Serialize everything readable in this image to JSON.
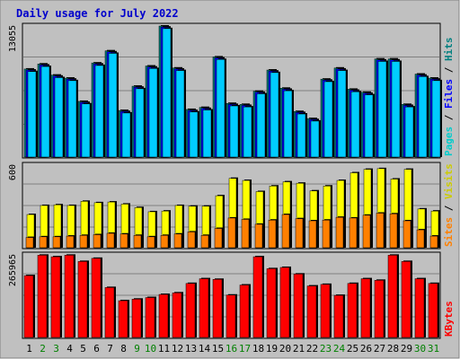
{
  "colors": {
    "background": "#c0c0c0",
    "border": "#808080",
    "panel_border": "#000000",
    "title_text": "#0000cc",
    "hits_label": "#008080",
    "files_label": "#0000ff",
    "pages_label": "#00cccc",
    "visits_label": "#cccc00",
    "sites_label": "#ff8000",
    "kbytes_label": "#ff0000",
    "weekday_text": "#000000",
    "weekend_text": "#008000"
  },
  "chart_data": {
    "type": "bar",
    "title": "Daily usage for July 2022",
    "days": [
      "1",
      "2",
      "3",
      "4",
      "5",
      "6",
      "7",
      "8",
      "9",
      "10",
      "11",
      "12",
      "13",
      "14",
      "15",
      "16",
      "17",
      "18",
      "19",
      "20",
      "21",
      "22",
      "23",
      "24",
      "25",
      "26",
      "27",
      "28",
      "29",
      "30",
      "31"
    ],
    "weekend_days": [
      "2",
      "3",
      "9",
      "10",
      "16",
      "17",
      "23",
      "24",
      "30",
      "31"
    ],
    "panels": [
      {
        "name": "hits-files-pages",
        "ymax_label": "13055",
        "ymax": 13055,
        "legend": [
          "Pages",
          "Files",
          "Hits"
        ],
        "series": [
          {
            "name": "Hits",
            "color": "#008080",
            "values": [
              8800,
              9300,
              8200,
              7900,
              5600,
              9400,
              10600,
              4700,
              7100,
              9100,
              13055,
              8900,
              4800,
              5000,
              10000,
              5400,
              5300,
              6600,
              8700,
              6900,
              4600,
              3900,
              7800,
              8900,
              6800,
              6500,
              9800,
              9800,
              5300,
              8300,
              7900
            ]
          },
          {
            "name": "Files",
            "color": "#0000ff",
            "values": [
              8700,
              9200,
              8100,
              7800,
              5500,
              9300,
              10500,
              4600,
              7000,
              9000,
              12950,
              8800,
              4700,
              4900,
              9900,
              5300,
              5200,
              6500,
              8600,
              6800,
              4500,
              3800,
              7700,
              8800,
              6700,
              6400,
              9700,
              9700,
              5200,
              8200,
              7800
            ]
          },
          {
            "name": "Pages",
            "color": "#00ccff",
            "values": [
              8550,
              9050,
              7950,
              7650,
              5350,
              9150,
              10350,
              4450,
              6850,
              8850,
              12800,
              8650,
              4550,
              4750,
              9750,
              5150,
              5050,
              6350,
              8450,
              6650,
              4350,
              3650,
              7550,
              8650,
              6550,
              6250,
              9550,
              9550,
              5050,
              8050,
              7650
            ]
          }
        ]
      },
      {
        "name": "visits-sites",
        "ymax_label": "600",
        "ymax": 600,
        "legend": [
          "Sites",
          "Visits"
        ],
        "series": [
          {
            "name": "Visits",
            "color": "#ffff00",
            "values": [
              245,
              310,
              315,
              310,
              340,
              330,
              335,
              320,
              295,
              265,
              270,
              310,
              305,
              305,
              380,
              505,
              490,
              410,
              450,
              480,
              470,
              415,
              450,
              490,
              545,
              570,
              575,
              500,
              570,
              285,
              270
            ]
          },
          {
            "name": "Sites",
            "color": "#ff8000",
            "values": [
              80,
              85,
              85,
              90,
              95,
              100,
              110,
              105,
              95,
              85,
              95,
              105,
              120,
              95,
              145,
              220,
              210,
              175,
              205,
              245,
              215,
              200,
              205,
              225,
              220,
              240,
              255,
              250,
              200,
              135,
              90
            ]
          }
        ]
      },
      {
        "name": "kbytes",
        "ymax_label": "265965",
        "ymax": 265965,
        "legend": [
          "KBytes"
        ],
        "series": [
          {
            "name": "KBytes",
            "color": "#ff0000",
            "values": [
              200000,
              265000,
              260000,
              265000,
              245000,
              255000,
              162000,
              120000,
              125000,
              130000,
              140000,
              145000,
              175000,
              190000,
              188000,
              138000,
              170000,
              260000,
              222000,
              226000,
              205000,
              167000,
              172000,
              137000,
              175000,
              190000,
              185000,
              265000,
              245000,
              190000,
              175000
            ]
          }
        ]
      }
    ]
  }
}
